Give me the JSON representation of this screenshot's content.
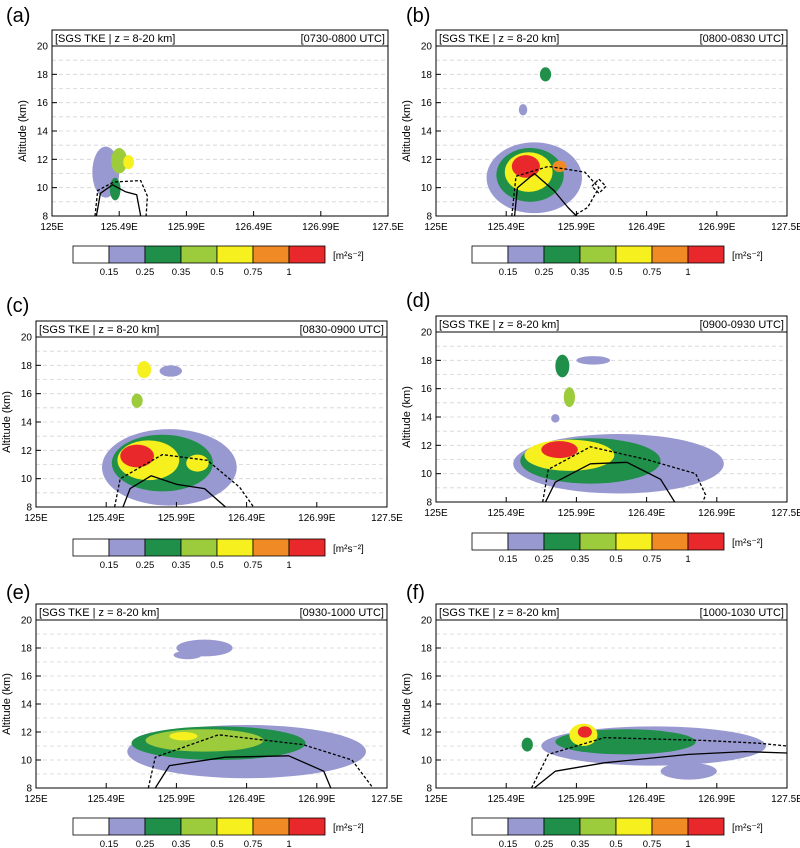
{
  "chart_data": [
    {
      "panel": "(a)",
      "type": "heatmap",
      "title_left": "[SGS TKE | z = 8-20 km]",
      "title_right": "[0730-0800 UTC]",
      "ylabel": "Altitude (km)",
      "xticks": [
        "125E",
        "125.49E",
        "125.99E",
        "126.49E",
        "126.99E",
        "127.5E"
      ],
      "yticks": [
        8,
        10,
        12,
        14,
        16,
        18,
        20
      ],
      "xlim": [
        125.0,
        127.5
      ],
      "ylim": [
        8,
        20
      ],
      "grid": "dashed-horizontal",
      "blobs": [
        {
          "x": 125.4,
          "y": 11.1,
          "rx": 0.1,
          "ry": 1.8,
          "level": 1
        },
        {
          "x": 125.5,
          "y": 11.9,
          "rx": 0.06,
          "ry": 0.9,
          "level": 3
        },
        {
          "x": 125.57,
          "y": 11.8,
          "rx": 0.04,
          "ry": 0.5,
          "level": 4
        },
        {
          "x": 125.47,
          "y": 9.9,
          "rx": 0.04,
          "ry": 0.8,
          "level": 2
        }
      ],
      "contours": [
        {
          "style": "solid",
          "points": [
            [
              125.33,
              8.0
            ],
            [
              125.36,
              9.6
            ],
            [
              125.45,
              10.2
            ],
            [
              125.55,
              9.7
            ],
            [
              125.63,
              9.5
            ],
            [
              125.66,
              8.0
            ]
          ]
        },
        {
          "style": "dashed",
          "points": [
            [
              125.32,
              8.0
            ],
            [
              125.34,
              9.8
            ],
            [
              125.46,
              10.4
            ],
            [
              125.66,
              10.5
            ],
            [
              125.71,
              9.4
            ],
            [
              125.7,
              8.0
            ]
          ]
        }
      ]
    },
    {
      "panel": "(b)",
      "type": "heatmap",
      "title_left": "[SGS TKE | z = 8-20 km]",
      "title_right": "[0800-0830 UTC]",
      "ylabel": "Altitude (km)",
      "xticks": [
        "125E",
        "125.49E",
        "125.99E",
        "126.49E",
        "126.99E",
        "127.5E"
      ],
      "yticks": [
        8,
        10,
        12,
        14,
        16,
        18,
        20
      ],
      "xlim": [
        125.0,
        127.5
      ],
      "ylim": [
        8,
        20
      ],
      "grid": "dashed-horizontal",
      "blobs": [
        {
          "x": 125.7,
          "y": 10.7,
          "rx": 0.34,
          "ry": 2.5,
          "level": 1
        },
        {
          "x": 125.67,
          "y": 10.9,
          "rx": 0.24,
          "ry": 1.9,
          "level": 2
        },
        {
          "x": 125.66,
          "y": 11.1,
          "rx": 0.17,
          "ry": 1.4,
          "level": 4
        },
        {
          "x": 125.64,
          "y": 11.5,
          "rx": 0.1,
          "ry": 0.8,
          "level": 6
        },
        {
          "x": 125.88,
          "y": 11.5,
          "rx": 0.05,
          "ry": 0.4,
          "level": 5
        },
        {
          "x": 125.78,
          "y": 18.0,
          "rx": 0.04,
          "ry": 0.5,
          "level": 2
        },
        {
          "x": 125.62,
          "y": 15.5,
          "rx": 0.03,
          "ry": 0.4,
          "level": 1
        }
      ],
      "contours": [
        {
          "style": "solid",
          "points": [
            [
              125.56,
              8.0
            ],
            [
              125.58,
              10.0
            ],
            [
              125.7,
              11.0
            ],
            [
              125.84,
              9.8
            ],
            [
              125.94,
              8.6
            ],
            [
              126.0,
              8.0
            ]
          ]
        },
        {
          "style": "dashed",
          "points": [
            [
              125.54,
              8.0
            ],
            [
              125.57,
              10.8
            ],
            [
              125.8,
              11.5
            ],
            [
              126.06,
              11.1
            ],
            [
              126.16,
              10.0
            ],
            [
              126.08,
              8.6
            ],
            [
              125.98,
              8.0
            ]
          ]
        },
        {
          "style": "dashed",
          "points": [
            [
              126.16,
              10.6
            ],
            [
              126.21,
              10.1
            ],
            [
              126.16,
              9.6
            ],
            [
              126.11,
              10.1
            ],
            [
              126.16,
              10.6
            ]
          ]
        }
      ]
    },
    {
      "panel": "(c)",
      "type": "heatmap",
      "title_left": "[SGS TKE | z = 8-20 km]",
      "title_right": "[0830-0900 UTC]",
      "ylabel": "Altitude (km)",
      "xticks": [
        "125E",
        "125.49E",
        "125.99E",
        "126.49E",
        "126.99E",
        "127.5E"
      ],
      "yticks": [
        8,
        10,
        12,
        14,
        16,
        18,
        20
      ],
      "xlim": [
        125.0,
        127.5
      ],
      "ylim": [
        8,
        20
      ],
      "grid": "dashed-horizontal",
      "blobs": [
        {
          "x": 125.95,
          "y": 10.8,
          "rx": 0.48,
          "ry": 2.7,
          "level": 1
        },
        {
          "x": 125.9,
          "y": 11.1,
          "rx": 0.36,
          "ry": 2.0,
          "level": 2
        },
        {
          "x": 125.8,
          "y": 11.3,
          "rx": 0.22,
          "ry": 1.4,
          "level": 4
        },
        {
          "x": 125.72,
          "y": 11.6,
          "rx": 0.12,
          "ry": 0.8,
          "level": 6
        },
        {
          "x": 126.15,
          "y": 11.1,
          "rx": 0.08,
          "ry": 0.6,
          "level": 4
        },
        {
          "x": 125.77,
          "y": 17.7,
          "rx": 0.05,
          "ry": 0.6,
          "level": 4
        },
        {
          "x": 125.96,
          "y": 17.6,
          "rx": 0.08,
          "ry": 0.4,
          "level": 1
        },
        {
          "x": 125.72,
          "y": 15.5,
          "rx": 0.04,
          "ry": 0.5,
          "level": 3
        }
      ],
      "contours": [
        {
          "style": "solid",
          "points": [
            [
              125.62,
              8.0
            ],
            [
              125.67,
              9.3
            ],
            [
              125.82,
              10.2
            ],
            [
              126.0,
              9.6
            ],
            [
              126.2,
              9.3
            ],
            [
              126.35,
              8.0
            ]
          ]
        },
        {
          "style": "dashed",
          "points": [
            [
              125.56,
              8.0
            ],
            [
              125.6,
              10.0
            ],
            [
              125.9,
              11.7
            ],
            [
              126.22,
              11.3
            ],
            [
              126.45,
              9.4
            ],
            [
              126.55,
              8.0
            ]
          ]
        }
      ]
    },
    {
      "panel": "(d)",
      "type": "heatmap",
      "title_left": "[SGS TKE | z = 8-20 km]",
      "title_right": "[0900-0930 UTC]",
      "ylabel": "Altitude (km)",
      "xticks": [
        "125E",
        "125.49E",
        "125.99E",
        "126.49E",
        "126.99E",
        "127.5E"
      ],
      "yticks": [
        8,
        10,
        12,
        14,
        16,
        18,
        20
      ],
      "xlim": [
        125.0,
        127.5
      ],
      "ylim": [
        8,
        20
      ],
      "grid": "dashed-horizontal",
      "blobs": [
        {
          "x": 126.3,
          "y": 10.7,
          "rx": 0.75,
          "ry": 2.1,
          "level": 1
        },
        {
          "x": 126.1,
          "y": 10.9,
          "rx": 0.5,
          "ry": 1.6,
          "level": 2
        },
        {
          "x": 125.95,
          "y": 11.3,
          "rx": 0.32,
          "ry": 1.1,
          "level": 4
        },
        {
          "x": 125.88,
          "y": 11.7,
          "rx": 0.13,
          "ry": 0.6,
          "level": 6
        },
        {
          "x": 125.9,
          "y": 17.6,
          "rx": 0.05,
          "ry": 0.8,
          "level": 2
        },
        {
          "x": 126.12,
          "y": 18.0,
          "rx": 0.12,
          "ry": 0.3,
          "level": 1
        },
        {
          "x": 125.95,
          "y": 15.4,
          "rx": 0.04,
          "ry": 0.7,
          "level": 3
        },
        {
          "x": 125.85,
          "y": 13.9,
          "rx": 0.03,
          "ry": 0.3,
          "level": 1
        },
        {
          "x": 126.95,
          "y": 10.3,
          "rx": 0.07,
          "ry": 0.3,
          "level": 1
        }
      ],
      "contours": [
        {
          "style": "solid",
          "points": [
            [
              125.78,
              8.0
            ],
            [
              125.85,
              9.4
            ],
            [
              126.1,
              10.7
            ],
            [
              126.36,
              10.8
            ],
            [
              126.6,
              9.6
            ],
            [
              126.7,
              8.0
            ]
          ]
        },
        {
          "style": "dashed",
          "points": [
            [
              125.76,
              8.0
            ],
            [
              125.8,
              10.3
            ],
            [
              126.1,
              11.9
            ],
            [
              126.5,
              11.0
            ],
            [
              126.85,
              10.0
            ],
            [
              126.92,
              8.5
            ],
            [
              126.9,
              8.0
            ]
          ]
        }
      ]
    },
    {
      "panel": "(e)",
      "type": "heatmap",
      "title_left": "[SGS TKE | z = 8-20 km]",
      "title_right": "[0930-1000 UTC]",
      "ylabel": "Altitude (km)",
      "xticks": [
        "125E",
        "125.49E",
        "125.99E",
        "126.49E",
        "126.99E",
        "127.5E"
      ],
      "yticks": [
        8,
        10,
        12,
        14,
        16,
        18,
        20
      ],
      "xlim": [
        125.0,
        127.5
      ],
      "ylim": [
        8,
        20
      ],
      "grid": "dashed-horizontal",
      "blobs": [
        {
          "x": 126.5,
          "y": 10.6,
          "rx": 0.85,
          "ry": 1.9,
          "level": 1
        },
        {
          "x": 126.3,
          "y": 11.2,
          "rx": 0.62,
          "ry": 1.2,
          "level": 2
        },
        {
          "x": 126.2,
          "y": 11.4,
          "rx": 0.42,
          "ry": 0.8,
          "level": 3
        },
        {
          "x": 126.05,
          "y": 11.7,
          "rx": 0.1,
          "ry": 0.3,
          "level": 4
        },
        {
          "x": 126.2,
          "y": 18.0,
          "rx": 0.2,
          "ry": 0.6,
          "level": 1
        },
        {
          "x": 126.08,
          "y": 17.5,
          "rx": 0.1,
          "ry": 0.3,
          "level": 1
        }
      ],
      "contours": [
        {
          "style": "solid",
          "points": [
            [
              125.85,
              8.0
            ],
            [
              125.95,
              9.6
            ],
            [
              126.35,
              10.2
            ],
            [
              126.8,
              10.3
            ],
            [
              127.05,
              9.2
            ],
            [
              127.1,
              8.0
            ]
          ]
        },
        {
          "style": "dashed",
          "points": [
            [
              125.8,
              8.0
            ],
            [
              125.85,
              10.2
            ],
            [
              126.3,
              11.8
            ],
            [
              126.9,
              11.1
            ],
            [
              127.25,
              10.0
            ],
            [
              127.4,
              8.0
            ]
          ]
        }
      ]
    },
    {
      "panel": "(f)",
      "type": "heatmap",
      "title_left": "[SGS TKE | z = 8-20 km]",
      "title_right": "[1000-1030 UTC]",
      "ylabel": "Altitude (km)",
      "xticks": [
        "125E",
        "125.49E",
        "125.99E",
        "126.49E",
        "126.99E",
        "127.5E"
      ],
      "yticks": [
        8,
        10,
        12,
        14,
        16,
        18,
        20
      ],
      "xlim": [
        125.0,
        127.5
      ],
      "ylim": [
        8,
        20
      ],
      "grid": "dashed-horizontal",
      "blobs": [
        {
          "x": 126.55,
          "y": 11.0,
          "rx": 0.8,
          "ry": 1.4,
          "level": 1
        },
        {
          "x": 126.35,
          "y": 11.3,
          "rx": 0.5,
          "ry": 0.9,
          "level": 2
        },
        {
          "x": 126.05,
          "y": 11.8,
          "rx": 0.1,
          "ry": 0.8,
          "level": 4
        },
        {
          "x": 126.06,
          "y": 12.0,
          "rx": 0.05,
          "ry": 0.4,
          "level": 6
        },
        {
          "x": 125.65,
          "y": 11.1,
          "rx": 0.04,
          "ry": 0.5,
          "level": 2
        },
        {
          "x": 126.8,
          "y": 9.2,
          "rx": 0.2,
          "ry": 0.6,
          "level": 1
        }
      ],
      "contours": [
        {
          "style": "solid",
          "points": [
            [
              125.7,
              8.0
            ],
            [
              125.85,
              9.2
            ],
            [
              126.2,
              9.8
            ],
            [
              126.8,
              10.4
            ],
            [
              127.2,
              10.6
            ],
            [
              127.5,
              10.5
            ]
          ]
        },
        {
          "style": "dashed",
          "points": [
            [
              125.68,
              8.0
            ],
            [
              125.8,
              10.4
            ],
            [
              126.2,
              11.6
            ],
            [
              126.9,
              11.4
            ],
            [
              127.3,
              11.2
            ],
            [
              127.5,
              11.0
            ]
          ]
        }
      ]
    }
  ],
  "legend": {
    "labels": [
      "0.15",
      "0.25",
      "0.35",
      "0.5",
      "0.75",
      "1"
    ],
    "colors": [
      "#ffffff",
      "#9999d1",
      "#1f8f4a",
      "#9ccc3c",
      "#f6f01e",
      "#f08a24",
      "#e8282a"
    ],
    "unit": "[m²s⁻²]"
  }
}
